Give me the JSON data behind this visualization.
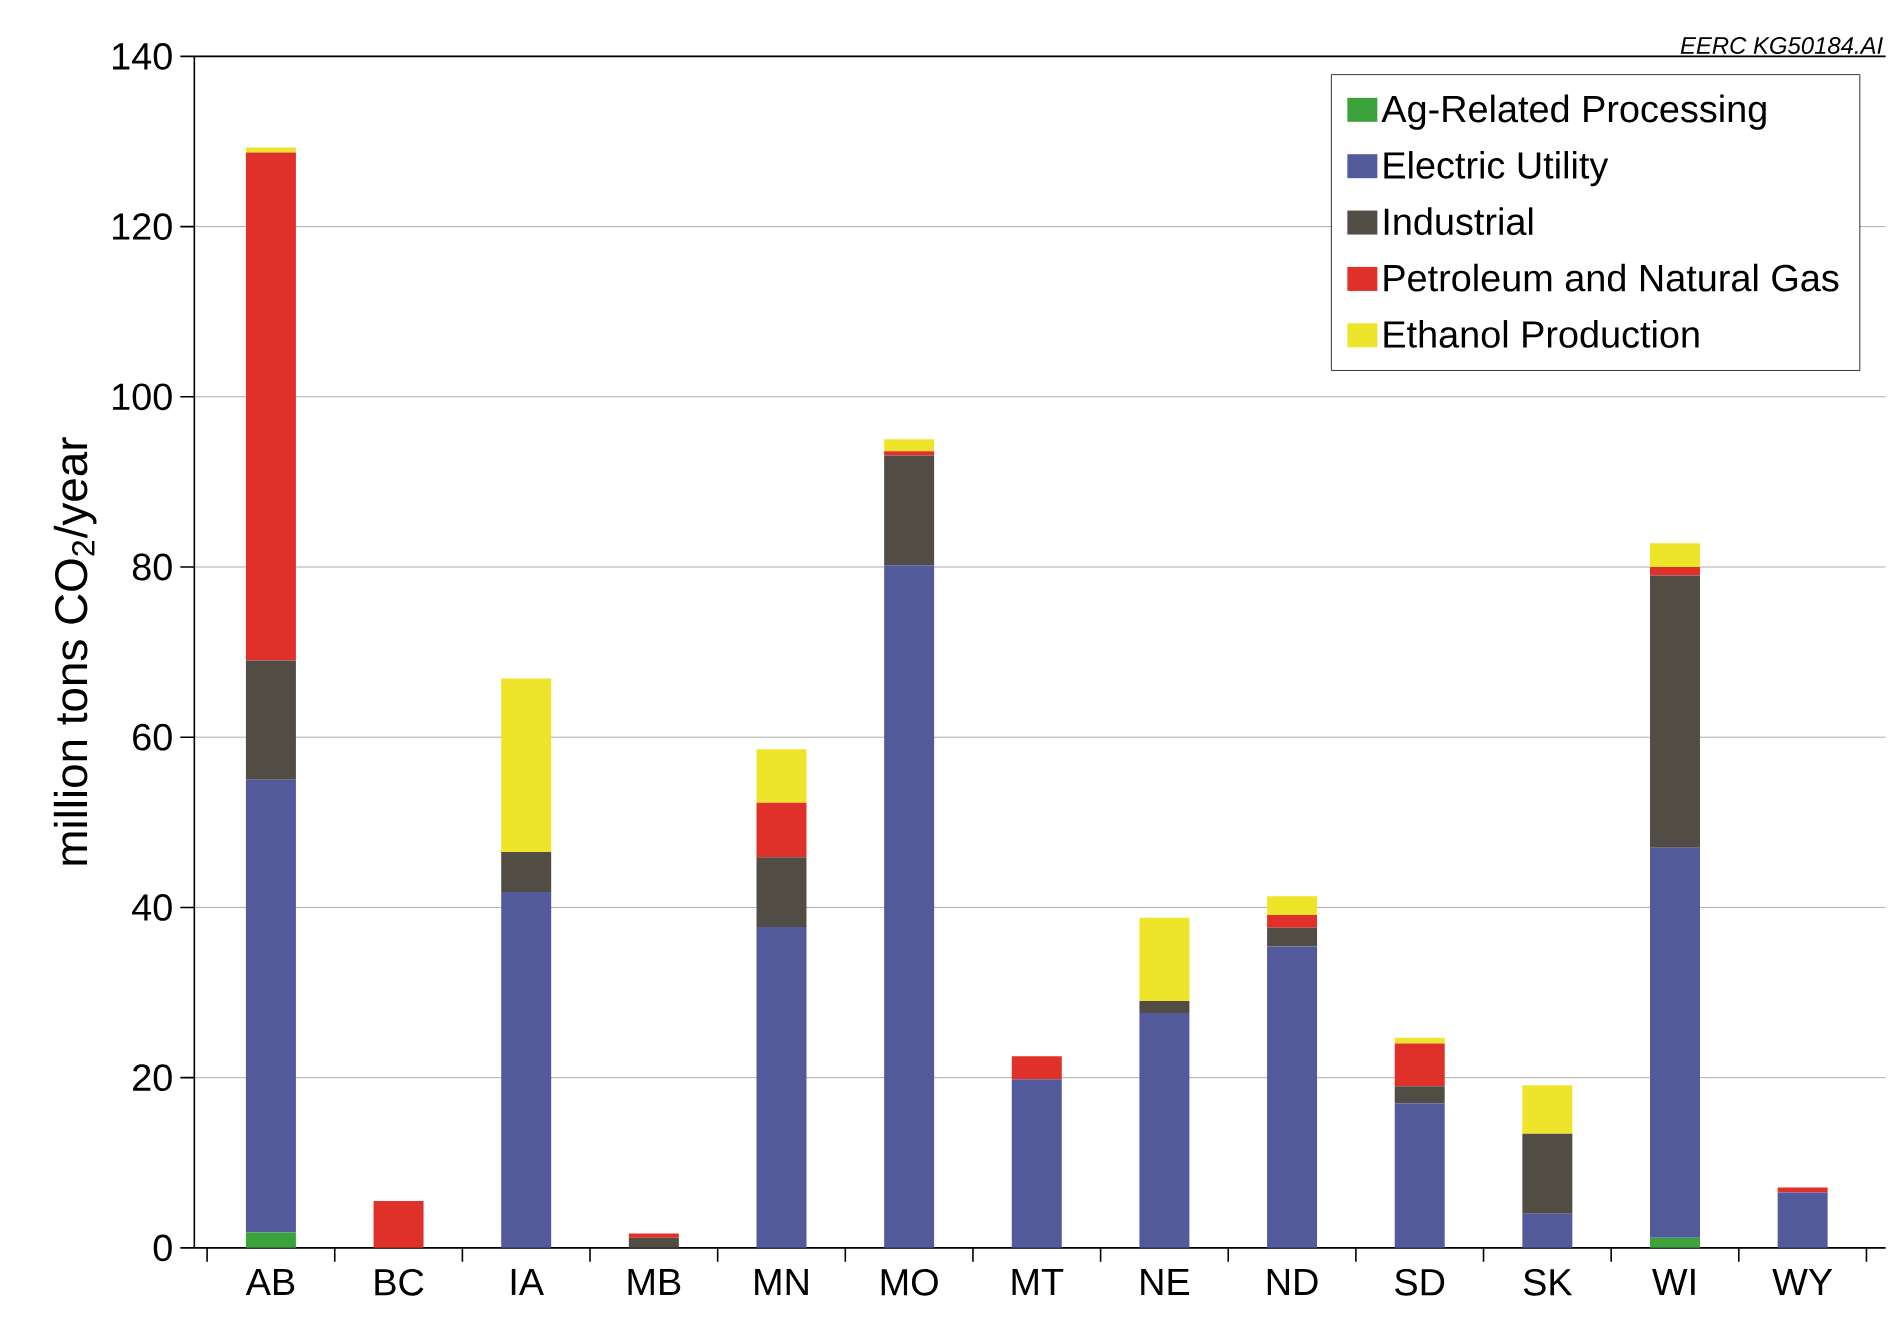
{
  "chart_data": {
    "type": "bar",
    "stacked": true,
    "ylabel": "million tons CO$_{2}$/year",
    "annotations": [
      "EERC KG50184.AI"
    ],
    "categories": [
      "AB",
      "BC",
      "IA",
      "MB",
      "MN",
      "MO",
      "MT",
      "NE",
      "ND",
      "SD",
      "SK",
      "WI",
      "WY"
    ],
    "series": [
      {
        "name": "Ag-Related Processing",
        "color": "#3ca23c",
        "values": [
          1.8,
          0,
          0,
          0,
          0,
          0,
          0,
          0,
          0,
          0,
          0,
          1.2,
          0
        ]
      },
      {
        "name": "Electric Utility",
        "color": "#525a9c",
        "values": [
          53.2,
          0,
          41.8,
          0,
          37.7,
          80.2,
          19.8,
          27.6,
          35.4,
          17,
          4,
          45.8,
          6.5
        ]
      },
      {
        "name": "Industrial",
        "color": "#514d45",
        "values": [
          14,
          0,
          4.7,
          1.2,
          8.2,
          12.9,
          0,
          1.4,
          2.2,
          2,
          9.4,
          32,
          0
        ]
      },
      {
        "name": "Petroleum and Natural Gas",
        "color": "#e0302a",
        "values": [
          59.7,
          5.5,
          0,
          0.5,
          6.4,
          0.5,
          2.7,
          0,
          1.5,
          5,
          0,
          1,
          0.6
        ]
      },
      {
        "name": "Ethanol Production",
        "color": "#eee52a",
        "values": [
          0.6,
          0,
          20.4,
          0,
          6.3,
          1.4,
          0,
          9.8,
          2.2,
          0.7,
          5.7,
          2.8,
          0
        ]
      }
    ],
    "ylim": [
      0,
      140
    ],
    "yticks": [
      0,
      20,
      40,
      60,
      80,
      100,
      120,
      140
    ],
    "grid": "y",
    "legend": "top right"
  }
}
